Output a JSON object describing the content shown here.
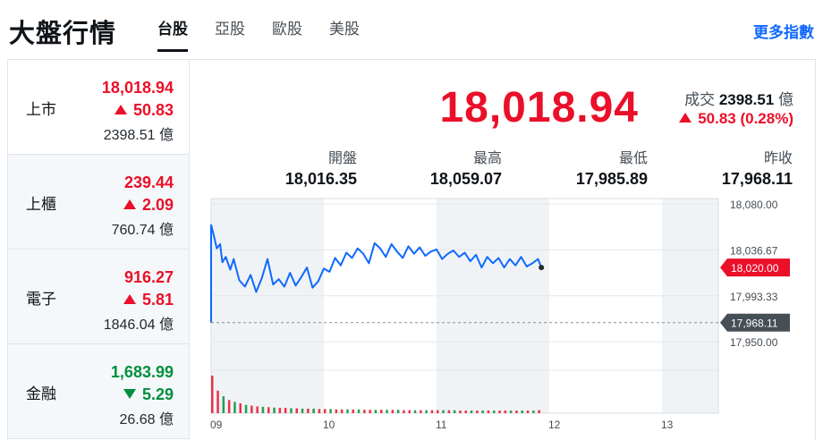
{
  "header": {
    "title": "大盤行情",
    "tabs": [
      "台股",
      "亞股",
      "歐股",
      "美股"
    ],
    "active_tab": 0,
    "more_label": "更多指數"
  },
  "markets": [
    {
      "name": "上市",
      "price": "18,018.94",
      "change": "50.83",
      "direction": "up",
      "volume": "2398.51 億"
    },
    {
      "name": "上櫃",
      "price": "239.44",
      "change": "2.09",
      "direction": "up",
      "volume": "760.74 億"
    },
    {
      "name": "電子",
      "price": "916.27",
      "change": "5.81",
      "direction": "up",
      "volume": "1846.04 億"
    },
    {
      "name": "金融",
      "price": "1,683.99",
      "change": "5.29",
      "direction": "down",
      "volume": "26.68 億"
    }
  ],
  "quote": {
    "price": "18,018.94",
    "turnover_label": "成交",
    "turnover_value": "2398.51",
    "turnover_unit": "億",
    "change": "50.83 (0.28%)",
    "stats": [
      {
        "label": "開盤",
        "value": "18,016.35"
      },
      {
        "label": "最高",
        "value": "18,059.07"
      },
      {
        "label": "最低",
        "value": "17,985.89"
      },
      {
        "label": "昨收",
        "value": "17,968.11"
      }
    ]
  },
  "colors": {
    "up": "#eb0f29",
    "down": "#008f3d",
    "line": "#0f69ff",
    "link": "#0f69ff",
    "prev_close_badge": "#464e56",
    "shade": "#f0f3f5"
  },
  "chart_data": {
    "type": "line",
    "x_tick_labels": [
      "09",
      "10",
      "11",
      "12",
      "13"
    ],
    "xlim": [
      9.0,
      13.5
    ],
    "ylim": [
      17935,
      18085
    ],
    "y_tick_labels": [
      "18,080.00",
      "18,036.67",
      "17,993.33",
      "17,950.00"
    ],
    "y_tick_values": [
      18080.0,
      18036.67,
      17993.33,
      17950.0
    ],
    "current_label": "18,020.00",
    "current_value": 18020.0,
    "reference_label": "17,968.11",
    "reference_value": 17968.11,
    "grid": true,
    "series": [
      {
        "x": [
          9.0,
          9.02,
          9.05,
          9.08,
          9.1,
          9.13,
          9.17,
          9.2,
          9.25,
          9.3,
          9.35,
          9.4,
          9.45,
          9.5,
          9.55,
          9.6,
          9.65,
          9.7,
          9.75,
          9.8,
          9.85,
          9.9,
          9.95,
          10.0,
          10.05,
          10.1,
          10.15,
          10.2,
          10.25,
          10.3,
          10.35,
          10.4,
          10.45,
          10.5,
          10.55,
          10.6,
          10.65,
          10.7,
          10.75,
          10.8,
          10.85,
          10.9,
          10.95,
          11.0,
          11.05,
          11.1,
          11.15,
          11.2,
          11.25,
          11.3,
          11.35,
          11.4,
          11.45,
          11.5,
          11.55,
          11.6,
          11.65,
          11.7,
          11.75,
          11.8,
          11.85,
          11.9,
          11.93
        ],
        "values": [
          18060,
          18052,
          18038,
          18042,
          18025,
          18030,
          18018,
          18028,
          18008,
          18002,
          18013,
          17997,
          18010,
          18028,
          18004,
          18009,
          18002,
          18015,
          18003,
          18011,
          18020,
          18001,
          18007,
          18019,
          18016,
          18029,
          18022,
          18034,
          18029,
          18038,
          18033,
          18024,
          18043,
          18038,
          18030,
          18042,
          18035,
          18029,
          18040,
          18033,
          18039,
          18031,
          18035,
          18037,
          18028,
          18033,
          18036,
          18030,
          18034,
          18026,
          18032,
          18020,
          18030,
          18024,
          18029,
          18020,
          18028,
          18022,
          18030,
          18021,
          18024,
          18028,
          18020
        ]
      }
    ],
    "volume": {
      "x": [
        9.0,
        9.05,
        9.1,
        9.15,
        9.2,
        9.25,
        9.3,
        9.35,
        9.4,
        9.45,
        9.5,
        9.55,
        9.6,
        9.65,
        9.7,
        9.75,
        9.8,
        9.85,
        9.9,
        9.95,
        10.0,
        10.05,
        10.1,
        10.15,
        10.2,
        10.25,
        10.3,
        10.35,
        10.4,
        10.45,
        10.5,
        10.55,
        10.6,
        10.65,
        10.7,
        10.75,
        10.8,
        10.85,
        10.9,
        10.95,
        11.0,
        11.05,
        11.1,
        11.15,
        11.2,
        11.25,
        11.3,
        11.35,
        11.4,
        11.45,
        11.5,
        11.55,
        11.6,
        11.65,
        11.7,
        11.75,
        11.8,
        11.85,
        11.9
      ],
      "values": [
        100,
        60,
        45,
        35,
        30,
        26,
        22,
        20,
        18,
        17,
        16,
        15,
        14,
        14,
        13,
        13,
        12,
        12,
        12,
        11,
        11,
        11,
        10,
        10,
        10,
        10,
        10,
        9,
        9,
        9,
        9,
        9,
        9,
        9,
        8,
        8,
        8,
        8,
        8,
        8,
        8,
        8,
        8,
        8,
        7,
        7,
        7,
        7,
        7,
        7,
        7,
        7,
        7,
        7,
        7,
        7,
        7,
        7,
        8
      ],
      "directions": [
        "up",
        "up",
        "down",
        "up",
        "down",
        "up",
        "down",
        "up",
        "up",
        "down",
        "up",
        "down",
        "up",
        "up",
        "down",
        "up",
        "down",
        "up",
        "down",
        "up",
        "up",
        "down",
        "up",
        "up",
        "down",
        "up",
        "down",
        "up",
        "up",
        "down",
        "up",
        "down",
        "up",
        "down",
        "up",
        "up",
        "down",
        "up",
        "down",
        "up",
        "up",
        "down",
        "up",
        "down",
        "up",
        "up",
        "down",
        "up",
        "down",
        "up",
        "down",
        "up",
        "up",
        "down",
        "up",
        "down",
        "up",
        "down",
        "up"
      ]
    }
  }
}
